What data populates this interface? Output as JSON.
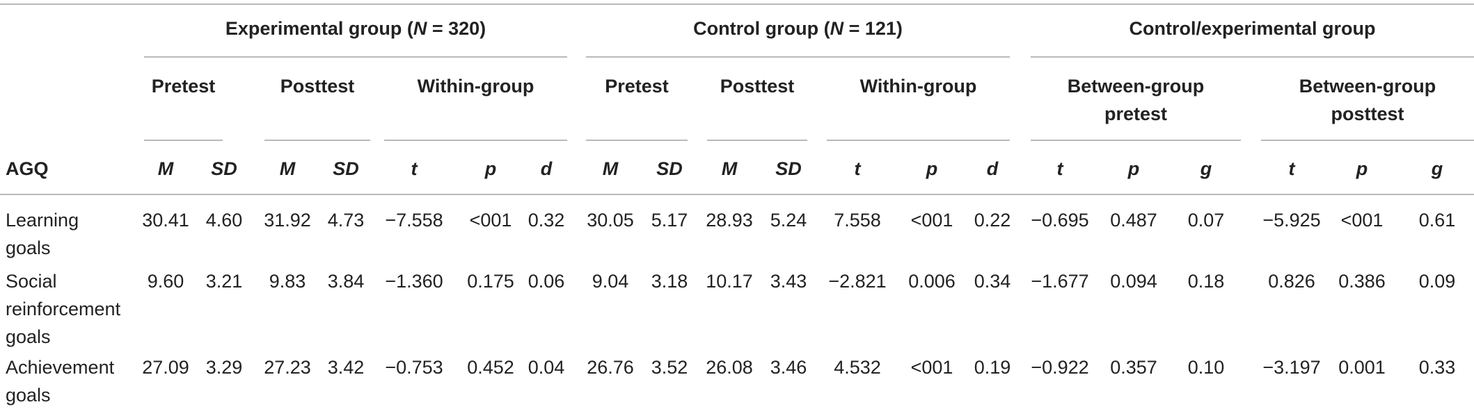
{
  "table": {
    "group_headers": [
      "Experimental group (|N| = 320)",
      "Control group (|N| = 121)",
      "Control/experimental group"
    ],
    "sub_headers": [
      "Pretest",
      "Posttest",
      "Within-group",
      "Pretest",
      "Posttest",
      "Within-group",
      "Between-group pretest",
      "Between-group posttest"
    ],
    "stat_headers": [
      "AGQ",
      "M",
      "SD",
      "M",
      "SD",
      "t",
      "p",
      "d",
      "M",
      "SD",
      "M",
      "SD",
      "t",
      "p",
      "d",
      "t",
      "p",
      "g",
      "t",
      "p",
      "g"
    ],
    "rows": [
      {
        "label": "Learning goals",
        "values": [
          "30.41",
          "4.60",
          "31.92",
          "4.73",
          "−7.558",
          "<001",
          "0.32",
          "30.05",
          "5.17",
          "28.93",
          "5.24",
          "7.558",
          "<001",
          "0.22",
          "−0.695",
          "0.487",
          "0.07",
          "−5.925",
          "<001",
          "0.61"
        ]
      },
      {
        "label": "Social reinforcement goals",
        "values": [
          "9.60",
          "3.21",
          "9.83",
          "3.84",
          "−1.360",
          "0.175",
          "0.06",
          "9.04",
          "3.18",
          "10.17",
          "3.43",
          "−2.821",
          "0.006",
          "0.34",
          "−1.677",
          "0.094",
          "0.18",
          "0.826",
          "0.386",
          "0.09"
        ]
      },
      {
        "label": "Achievement goals",
        "values": [
          "27.09",
          "3.29",
          "27.23",
          "3.42",
          "−0.753",
          "0.452",
          "0.04",
          "26.76",
          "3.52",
          "26.08",
          "3.46",
          "4.532",
          "<001",
          "0.19",
          "−0.922",
          "0.357",
          "0.10",
          "−3.197",
          "0.001",
          "0.33"
        ]
      }
    ]
  }
}
